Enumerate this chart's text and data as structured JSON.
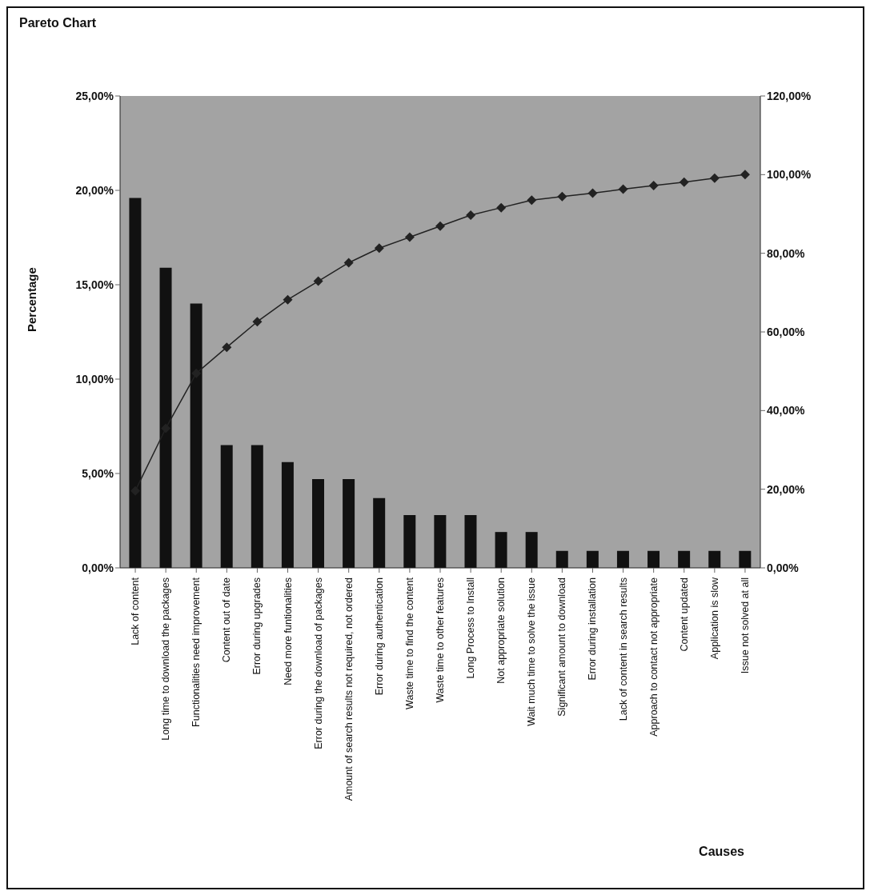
{
  "chart_data": {
    "type": "bar",
    "title": "Pareto Chart",
    "xlabel": "Causes",
    "ylabel": "Percentage",
    "categories": [
      "Lack of content",
      "Long time to download the packages",
      "Functionalities need improvement",
      "Content out of date",
      "Error during upgrades",
      "Need more funtionalities",
      "Error during the download of packages",
      "Amount of search results not required, not ordered",
      "Error during authentication",
      "Waste time to find the content",
      "Waste time to other features",
      "Long Process to Install",
      "Not appropriate solution",
      "Wait much time to solve the issue",
      "Significant amount to download",
      "Error during installation",
      "Lack of content in search results",
      "Approach to contact not appropriate",
      "Content updated",
      "Application is slow",
      "Issue not solved at all"
    ],
    "series": [
      {
        "color": "#111111",
        "values": [
          19.6,
          15.9,
          14.0,
          6.5,
          6.5,
          5.6,
          4.7,
          4.7,
          3.7,
          2.8,
          2.8,
          2.8,
          1.9,
          1.9,
          0.9,
          0.9,
          0.9,
          0.9,
          0.9,
          0.9,
          0.9
        ]
      },
      {
        "type": "line",
        "axis": "y2",
        "color": "#222222",
        "marker": "diamond",
        "line_style": "solid",
        "values": [
          19.6,
          35.5,
          49.5,
          56.1,
          62.6,
          68.2,
          72.9,
          77.6,
          81.3,
          84.1,
          86.9,
          89.7,
          91.6,
          93.5,
          94.4,
          95.3,
          96.3,
          97.2,
          98.1,
          99.1,
          100
        ]
      }
    ],
    "ylim": [
      0,
      25
    ],
    "yticks": [
      {
        "value": 0,
        "label": "0,00%"
      },
      {
        "value": 5,
        "label": "5,00%"
      },
      {
        "value": 10,
        "label": "10,00%"
      },
      {
        "value": 15,
        "label": "15,00%"
      },
      {
        "value": 20,
        "label": "20,00%"
      },
      {
        "value": 25,
        "label": "25,00%"
      }
    ],
    "y2lim": [
      0,
      120
    ],
    "y2ticks": [
      {
        "value": 0,
        "label": "0,00%"
      },
      {
        "value": 20,
        "label": "20,00%"
      },
      {
        "value": 40,
        "label": "40,00%"
      },
      {
        "value": 60,
        "label": "60,00%"
      },
      {
        "value": 80,
        "label": "80,00%"
      },
      {
        "value": 100,
        "label": "100,00%"
      },
      {
        "value": 120,
        "label": "120,00%"
      }
    ],
    "grid": false,
    "legend": false
  }
}
